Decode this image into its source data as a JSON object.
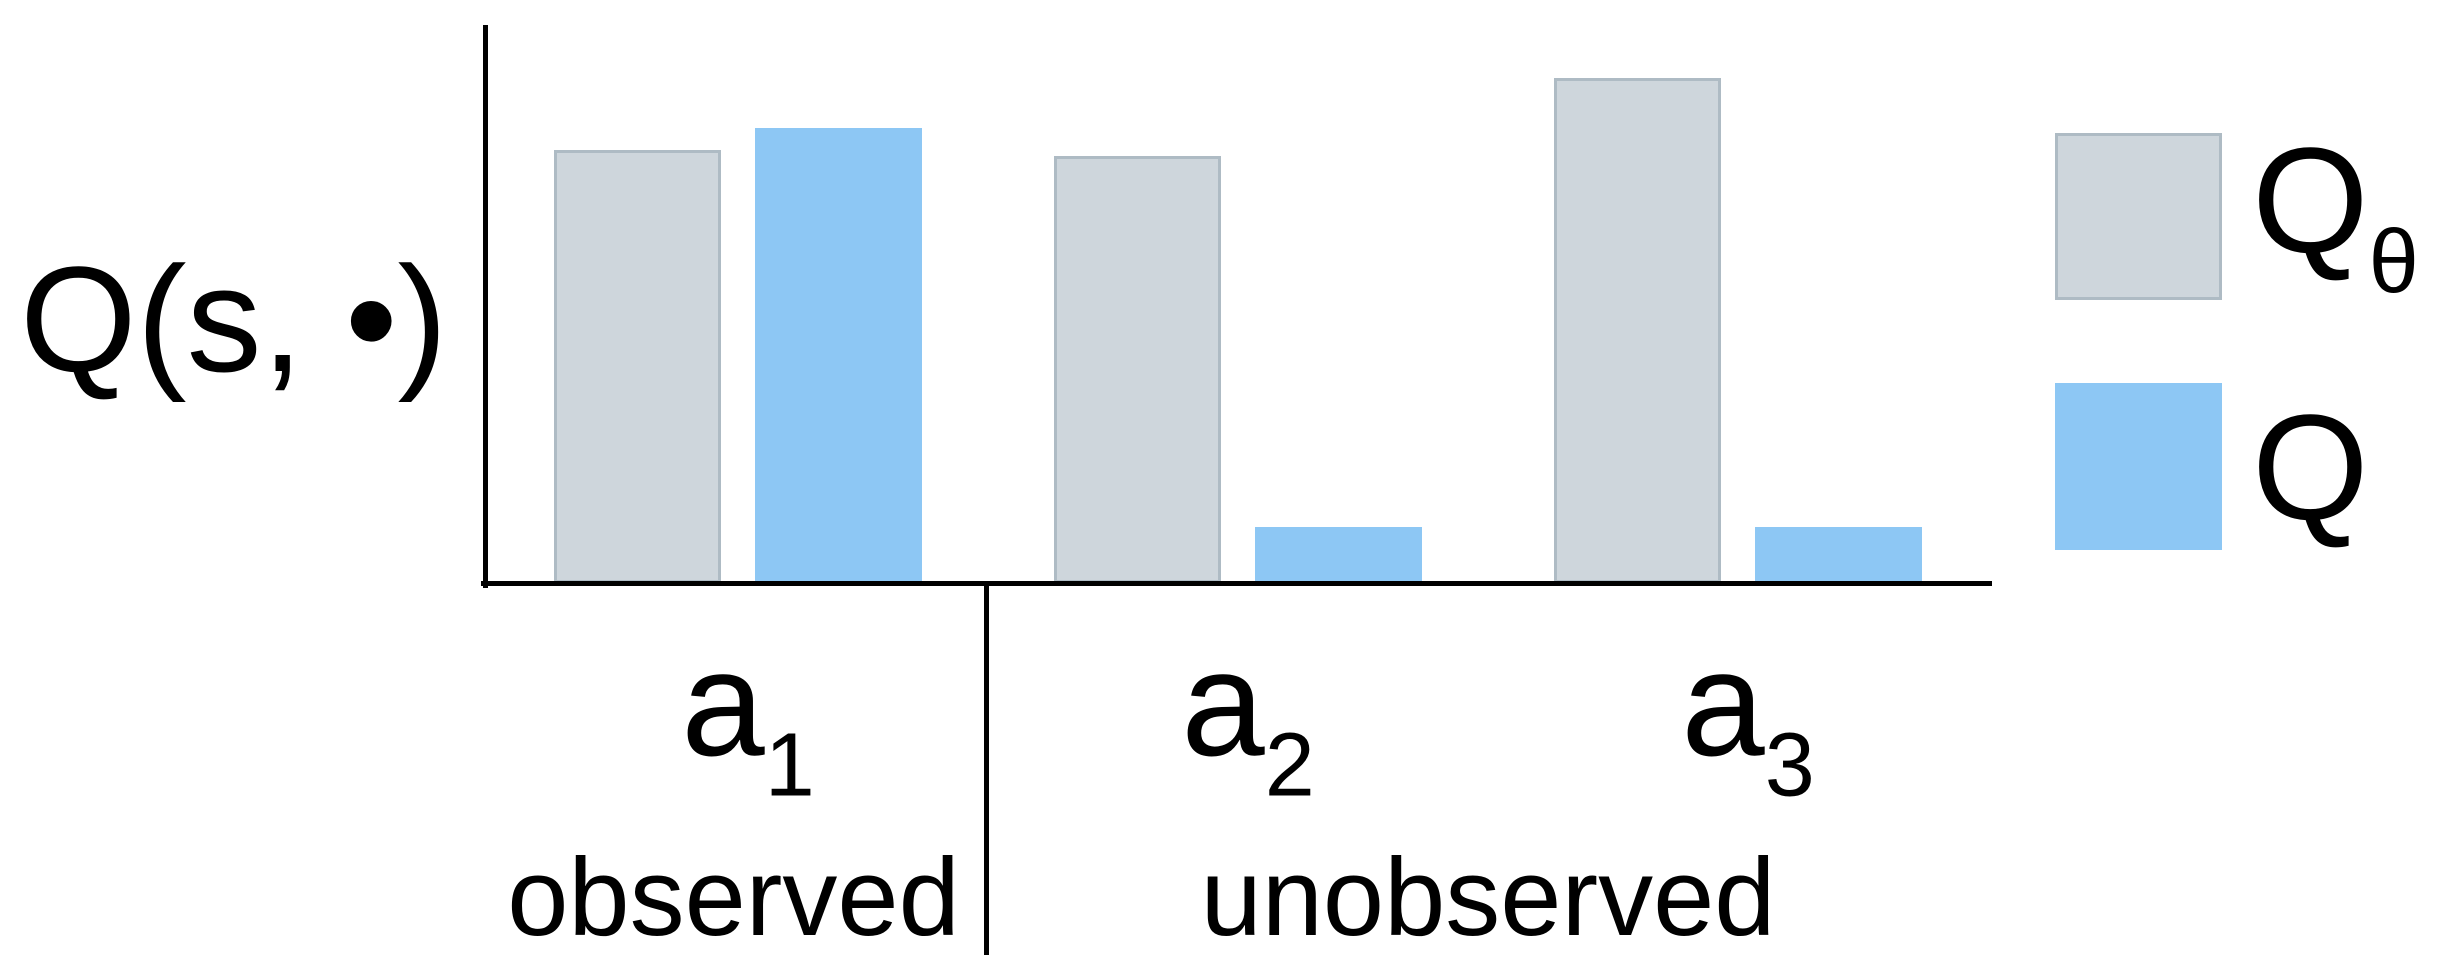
{
  "figure": {
    "ylabel": "Q(s, •)",
    "background": "#ffffff",
    "axis_color": "#000000"
  },
  "chart_data": {
    "type": "bar",
    "title": "",
    "xlabel": "",
    "ylabel": "Q(s, •)",
    "categories": [
      {
        "id": "a1",
        "main": "a",
        "sub": "1",
        "section": "observed"
      },
      {
        "id": "a2",
        "main": "a",
        "sub": "2",
        "section": "unobserved"
      },
      {
        "id": "a3",
        "main": "a",
        "sub": "3",
        "section": "unobserved"
      }
    ],
    "sections": [
      {
        "id": "observed",
        "label": "observed",
        "categories": [
          "a1"
        ]
      },
      {
        "id": "unobserved",
        "label": "unobserved",
        "categories": [
          "a2",
          "a3"
        ]
      }
    ],
    "series": [
      {
        "id": "qtheta",
        "label_main": "Q",
        "label_sub": "θ",
        "color": "#ced6dc",
        "border_color": "#aebbc4",
        "values": [
          0.78,
          0.77,
          0.91
        ]
      },
      {
        "id": "q",
        "label_main": "Q",
        "label_sub": "",
        "color": "#8dc7f4",
        "border_color": "",
        "values": [
          0.82,
          0.1,
          0.1
        ]
      }
    ],
    "ylim": [
      0,
      1
    ],
    "yticks": [],
    "grid": false,
    "legend_position": "right",
    "annotations": [
      "vertical divider line separates the observed action from the unobserved actions"
    ]
  }
}
